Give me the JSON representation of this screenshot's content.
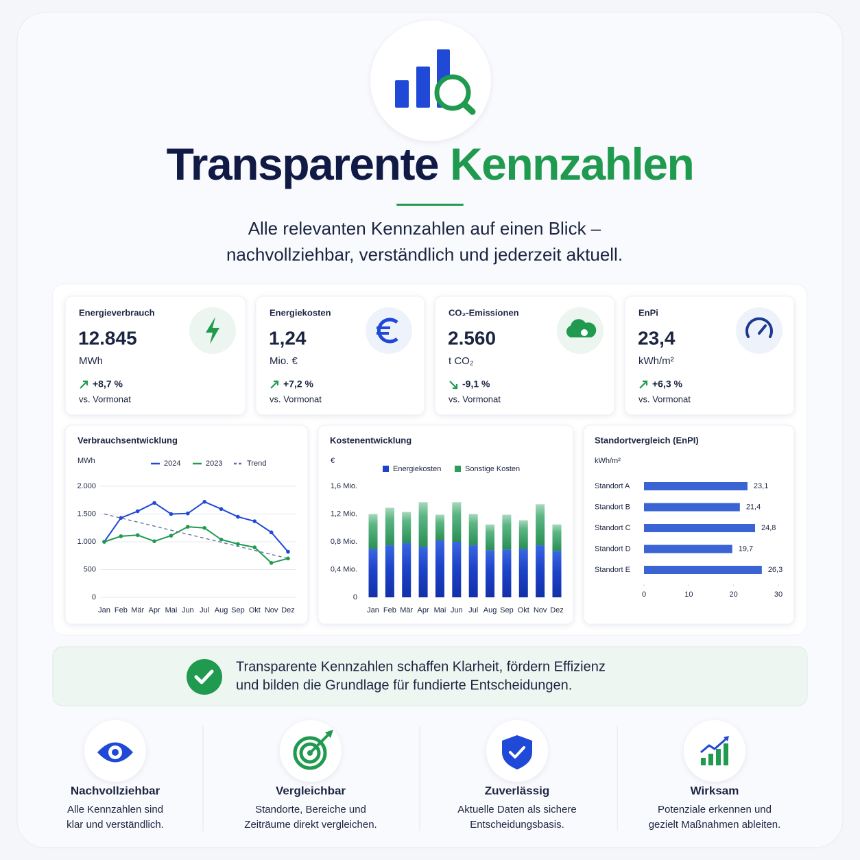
{
  "header": {
    "title_dark": "Transparente",
    "title_green": "Kennzahlen",
    "subtitle": [
      "Alle relevanten Kennzahlen auf einen Blick –",
      "nachvollziehbar, verständlich und jederzeit aktuell."
    ]
  },
  "kpis": [
    {
      "label": "Energieverbrauch",
      "value": "12.845",
      "unit": "MWh",
      "change": "+8,7 %",
      "note": "vs. Vormonat"
    },
    {
      "label": "Energiekosten",
      "value": "1,24",
      "unit": "Mio. €",
      "change": "+7,2 %",
      "note": "vs. Vormonat"
    },
    {
      "label": "CO₂-Emissionen",
      "value": "2.560",
      "unit": "t CO₂",
      "change": "-9,1 %",
      "note": "vs. Vormonat"
    },
    {
      "label": "EnPi",
      "value": "23,4",
      "unit": "kWh/m²",
      "change": "+6,3 %",
      "note": "vs. Vormonat"
    }
  ],
  "chart_data": [
    {
      "type": "line",
      "title": "Verbrauchsentwicklung",
      "y_label": "MWh",
      "categories": [
        "Jan",
        "Feb",
        "Mär",
        "Apr",
        "Mai",
        "Jun",
        "Jul",
        "Aug",
        "Sep",
        "Okt",
        "Nov",
        "Dez"
      ],
      "series": [
        {
          "name": "2024",
          "color": "#1f49d6",
          "values": [
            1000,
            1430,
            1550,
            1700,
            1500,
            1510,
            1720,
            1590,
            1450,
            1370,
            1170,
            820
          ]
        },
        {
          "name": "2023",
          "color": "#1f9a4f",
          "values": [
            1000,
            1100,
            1120,
            1010,
            1110,
            1270,
            1250,
            1040,
            960,
            900,
            620,
            700
          ]
        },
        {
          "name": "Trend",
          "color": "#5a6b9e",
          "dashed": true,
          "values": [
            1500,
            1427,
            1355,
            1282,
            1209,
            1136,
            1064,
            991,
            918,
            845,
            773,
            700
          ]
        }
      ],
      "ylim": [
        0,
        2000
      ],
      "yticks": [
        0,
        500,
        {
          "value": 1000,
          "label": "1.000"
        },
        {
          "value": 1500,
          "label": "1.500"
        },
        {
          "value": 2000,
          "label": "2.000"
        }
      ],
      "grid": true
    },
    {
      "type": "stacked_bar",
      "title": "Kostenentwicklung",
      "y_label": "€",
      "categories": [
        "Jan",
        "Feb",
        "Mär",
        "Apr",
        "Mai",
        "Jun",
        "Jul",
        "Aug",
        "Sep",
        "Okt",
        "Nov",
        "Dez"
      ],
      "series": [
        {
          "name": "Energiekosten",
          "color": "#1d43c9",
          "values": [
            0.7,
            0.75,
            0.78,
            0.73,
            0.82,
            0.8,
            0.75,
            0.68,
            0.69,
            0.7,
            0.75,
            0.67
          ]
        },
        {
          "name": "Sonstige Kosten",
          "color": "#2e9a5c",
          "values": [
            0.5,
            0.54,
            0.45,
            0.64,
            0.37,
            0.57,
            0.45,
            0.37,
            0.5,
            0.41,
            0.59,
            0.38
          ]
        }
      ],
      "ylim": [
        0,
        1.6
      ],
      "yticks": [
        0,
        {
          "value": 0.4,
          "label": "0,4 Mio."
        },
        {
          "value": 0.8,
          "label": "0,8 Mio."
        },
        {
          "value": 1.2,
          "label": "1,2 Mio."
        },
        {
          "value": 1.6,
          "label": "1,6 Mio."
        }
      ],
      "grid": false
    },
    {
      "type": "hbar",
      "title": "Standortvergleich (EnPI)",
      "y_label": "kWh/m²",
      "categories": [
        "Standort A",
        "Standort B",
        "Standort C",
        "Standort D",
        "Standort E"
      ],
      "values": [
        23.1,
        21.4,
        24.8,
        19.7,
        26.3
      ],
      "value_labels": [
        "23,1",
        "21,4",
        "24,8",
        "19,7",
        "26,3"
      ],
      "color": "#3a63d3",
      "xlim": [
        0,
        30
      ],
      "xticks": [
        0,
        10,
        20,
        30
      ]
    }
  ],
  "statement": [
    "Transparente Kennzahlen schaffen Klarheit, fördern Effizienz",
    "und bilden die Grundlage für fundierte Entscheidungen."
  ],
  "features": [
    {
      "title": "Nachvollziehbar",
      "text": [
        "Alle Kennzahlen sind",
        "klar und verständlich."
      ]
    },
    {
      "title": "Vergleichbar",
      "text": [
        "Standorte, Bereiche und",
        "Zeiträume direkt vergleichen."
      ]
    },
    {
      "title": "Zuverlässig",
      "text": [
        "Aktuelle Daten als sichere",
        "Entscheidungsbasis."
      ]
    },
    {
      "title": "Wirksam",
      "text": [
        "Potenziale erkennen und",
        "gezielt Maßnahmen ableiten."
      ]
    }
  ]
}
